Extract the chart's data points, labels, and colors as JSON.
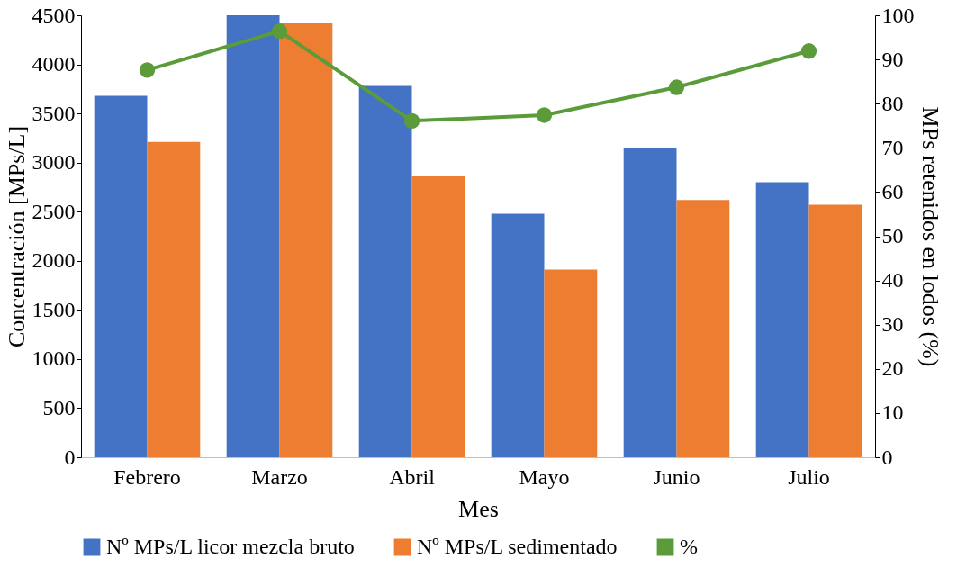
{
  "chart_data": {
    "type": "bar",
    "xlabel": "Mes",
    "ylabel": "Concentración [MPs/L]",
    "y2label": "MPs retenidos en lodos (%)",
    "categories": [
      "Febrero",
      "Marzo",
      "Abril",
      "Mayo",
      "Junio",
      "Julio"
    ],
    "series": [
      {
        "name": "Nº MPs/L licor mezcla bruto",
        "color": "#4472c4",
        "values": [
          3680,
          4500,
          3780,
          2480,
          3150,
          2800
        ]
      },
      {
        "name": "Nº MPs/L sedimentado",
        "color": "#ed7d31",
        "values": [
          3210,
          4420,
          2860,
          1910,
          2620,
          2570
        ]
      },
      {
        "name": "%",
        "type": "line",
        "axis": "y2",
        "marker": "circle",
        "color": "#5b9b3a",
        "values": [
          87.6,
          96.4,
          76.1,
          77.4,
          83.7,
          91.9
        ]
      }
    ],
    "ylim": [
      0,
      4500
    ],
    "yticks": [
      0,
      500,
      1000,
      1500,
      2000,
      2500,
      3000,
      3500,
      4000,
      4500
    ],
    "y2lim": [
      0,
      100
    ],
    "y2ticks": [
      0,
      10,
      20,
      30,
      40,
      50,
      60,
      70,
      80,
      90,
      100
    ],
    "grid": false,
    "legend": "bottom"
  }
}
